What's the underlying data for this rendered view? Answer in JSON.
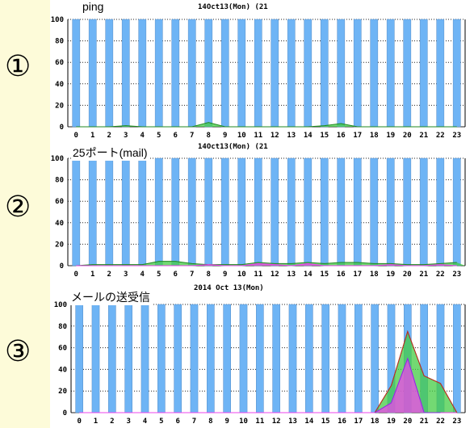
{
  "panels": [
    {
      "number": "①",
      "label": "ping",
      "header": "14Oct13(Mon) (21"
    },
    {
      "number": "②",
      "label": "25ポート(mail)",
      "header": "14Oct13(Mon) (21"
    },
    {
      "number": "③",
      "label": "メールの送受信",
      "header": "2014 Oct 13(Mon)"
    }
  ],
  "colors": {
    "bar": "#6eb4f5",
    "bar_border": "#5a8fc8",
    "green": "#44cc44",
    "magenta": "#ee44ee",
    "red": "#cc2222"
  },
  "chart_data": [
    {
      "type": "bar",
      "categories": [
        "0",
        "1",
        "2",
        "3",
        "4",
        "5",
        "6",
        "7",
        "8",
        "9",
        "10",
        "11",
        "12",
        "13",
        "14",
        "15",
        "16",
        "17",
        "18",
        "19",
        "20",
        "21",
        "22",
        "23"
      ],
      "ylim": [
        0,
        100
      ],
      "yticks": [
        0,
        20,
        40,
        60,
        80,
        100
      ],
      "series": [
        {
          "values": [
            100,
            100,
            100,
            100,
            100,
            100,
            100,
            100,
            100,
            100,
            100,
            100,
            100,
            100,
            100,
            100,
            100,
            100,
            100,
            100,
            100,
            100,
            100,
            100
          ]
        },
        {
          "values": [
            0,
            0,
            0,
            1,
            0,
            0,
            0,
            0,
            4,
            0,
            0,
            0,
            0,
            0,
            0,
            1,
            3,
            0,
            0,
            0,
            0,
            0,
            0,
            0
          ]
        }
      ]
    },
    {
      "type": "bar",
      "categories": [
        "0",
        "1",
        "2",
        "3",
        "4",
        "5",
        "6",
        "7",
        "8",
        "9",
        "10",
        "11",
        "12",
        "13",
        "14",
        "15",
        "16",
        "17",
        "18",
        "19",
        "20",
        "21",
        "22",
        "23"
      ],
      "ylim": [
        0,
        100
      ],
      "yticks": [
        0,
        20,
        40,
        60,
        80,
        100
      ],
      "series": [
        {
          "values": [
            100,
            100,
            100,
            100,
            100,
            100,
            100,
            100,
            100,
            100,
            100,
            100,
            100,
            100,
            100,
            100,
            100,
            100,
            100,
            100,
            100,
            100,
            100,
            100
          ]
        },
        {
          "values": [
            0,
            1,
            1,
            1,
            1,
            4,
            4,
            2,
            1,
            1,
            1,
            3,
            2,
            2,
            3,
            2,
            3,
            3,
            2,
            2,
            1,
            1,
            2,
            3
          ]
        },
        {
          "values": [
            0,
            0,
            0,
            0,
            0,
            0,
            0,
            0,
            1,
            0,
            0,
            2,
            1,
            0,
            2,
            0,
            0,
            0,
            0,
            1,
            0,
            0,
            1,
            0
          ]
        }
      ]
    },
    {
      "type": "bar",
      "categories": [
        "0",
        "1",
        "2",
        "3",
        "4",
        "5",
        "6",
        "7",
        "8",
        "9",
        "10",
        "11",
        "12",
        "13",
        "14",
        "15",
        "16",
        "17",
        "18",
        "19",
        "20",
        "21",
        "22",
        "23"
      ],
      "ylim": [
        0,
        100
      ],
      "yticks": [
        0,
        20,
        40,
        60,
        80,
        100
      ],
      "series": [
        {
          "values": [
            100,
            100,
            100,
            100,
            100,
            100,
            100,
            100,
            100,
            100,
            100,
            100,
            100,
            100,
            100,
            100,
            100,
            100,
            100,
            100,
            100,
            100,
            100,
            100
          ]
        },
        {
          "values": [
            0,
            0,
            0,
            0,
            0,
            0,
            0,
            0,
            0,
            0,
            0,
            0,
            0,
            0,
            0,
            0,
            0,
            0,
            0,
            25,
            75,
            34,
            27,
            0
          ]
        },
        {
          "values": [
            0,
            0,
            0,
            0,
            0,
            0,
            0,
            0,
            0,
            0,
            0,
            0,
            0,
            0,
            0,
            0,
            0,
            0,
            0,
            9,
            50,
            0,
            0,
            0
          ]
        }
      ]
    }
  ]
}
